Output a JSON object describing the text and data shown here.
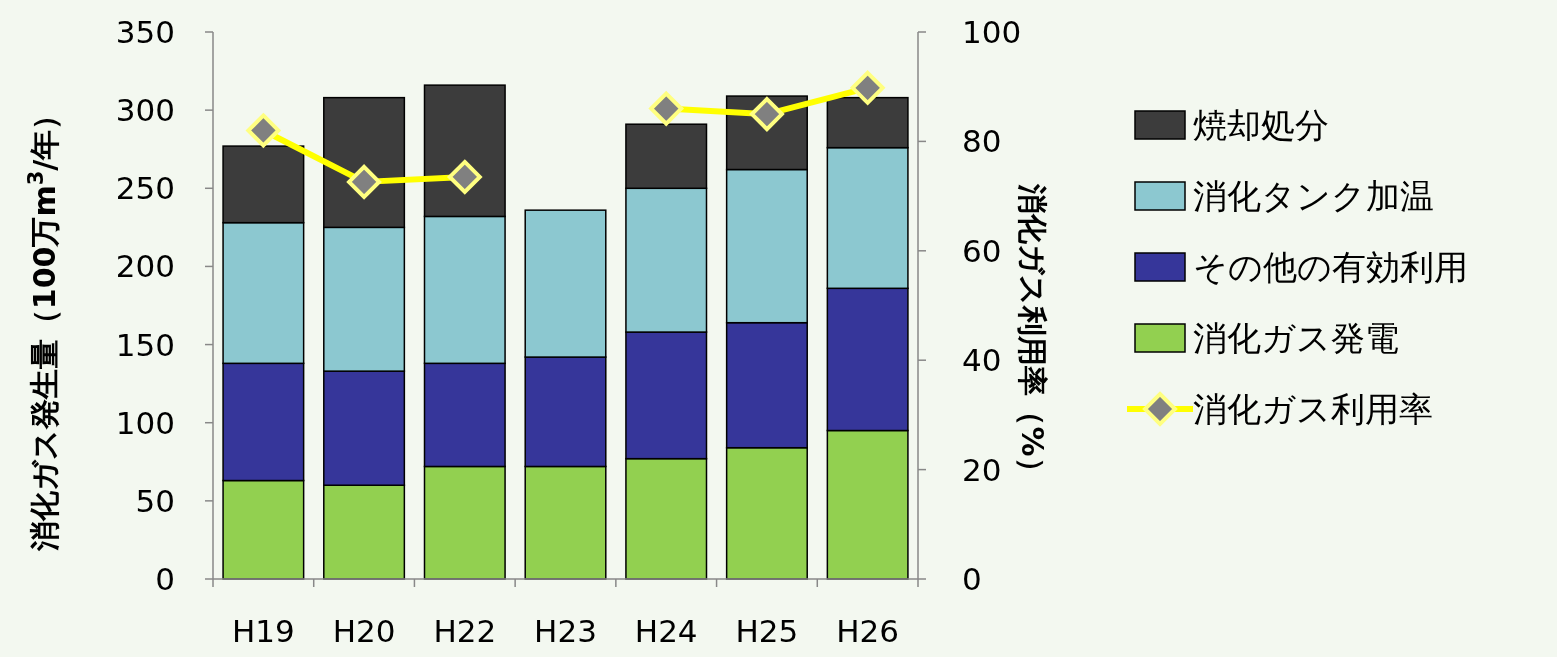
{
  "chart_data": {
    "type": "bar",
    "stacked": true,
    "ylabel": "消化ガス発生量（100万m$^{3}$/年）",
    "y2label": "消化ガス利用率（%）",
    "categories": [
      "H19",
      "H20",
      "H22",
      "H23",
      "H24",
      "H25",
      "H26"
    ],
    "ylim": [
      0,
      350
    ],
    "yticks": [
      0,
      50,
      100,
      150,
      200,
      250,
      300,
      350
    ],
    "y2lim": [
      0,
      100
    ],
    "y2ticks": [
      0,
      20,
      40,
      60,
      80,
      100
    ],
    "legend": "right",
    "grid": false,
    "series": [
      {
        "name": "消化ガス発電",
        "color": "#92d050",
        "values": [
          63,
          60,
          72,
          72,
          77,
          84,
          95
        ]
      },
      {
        "name": "その他の有効利用",
        "color": "#36369a",
        "values": [
          75,
          73,
          66,
          70,
          81,
          80,
          91
        ]
      },
      {
        "name": "消化タンク加温",
        "color": "#8cc8d0",
        "values": [
          90,
          92,
          94,
          94,
          92,
          98,
          90
        ]
      },
      {
        "name": "焼却処分",
        "color": "#3c3c3c",
        "values": [
          49,
          83,
          84,
          null,
          41,
          47,
          32
        ]
      },
      {
        "name": "消化ガス利用率",
        "type": "line",
        "axis": "y2",
        "color": "#ffff00",
        "marker": "diamond",
        "values": [
          82,
          72.6,
          73.5,
          null,
          86,
          85,
          89.8
        ]
      }
    ]
  }
}
